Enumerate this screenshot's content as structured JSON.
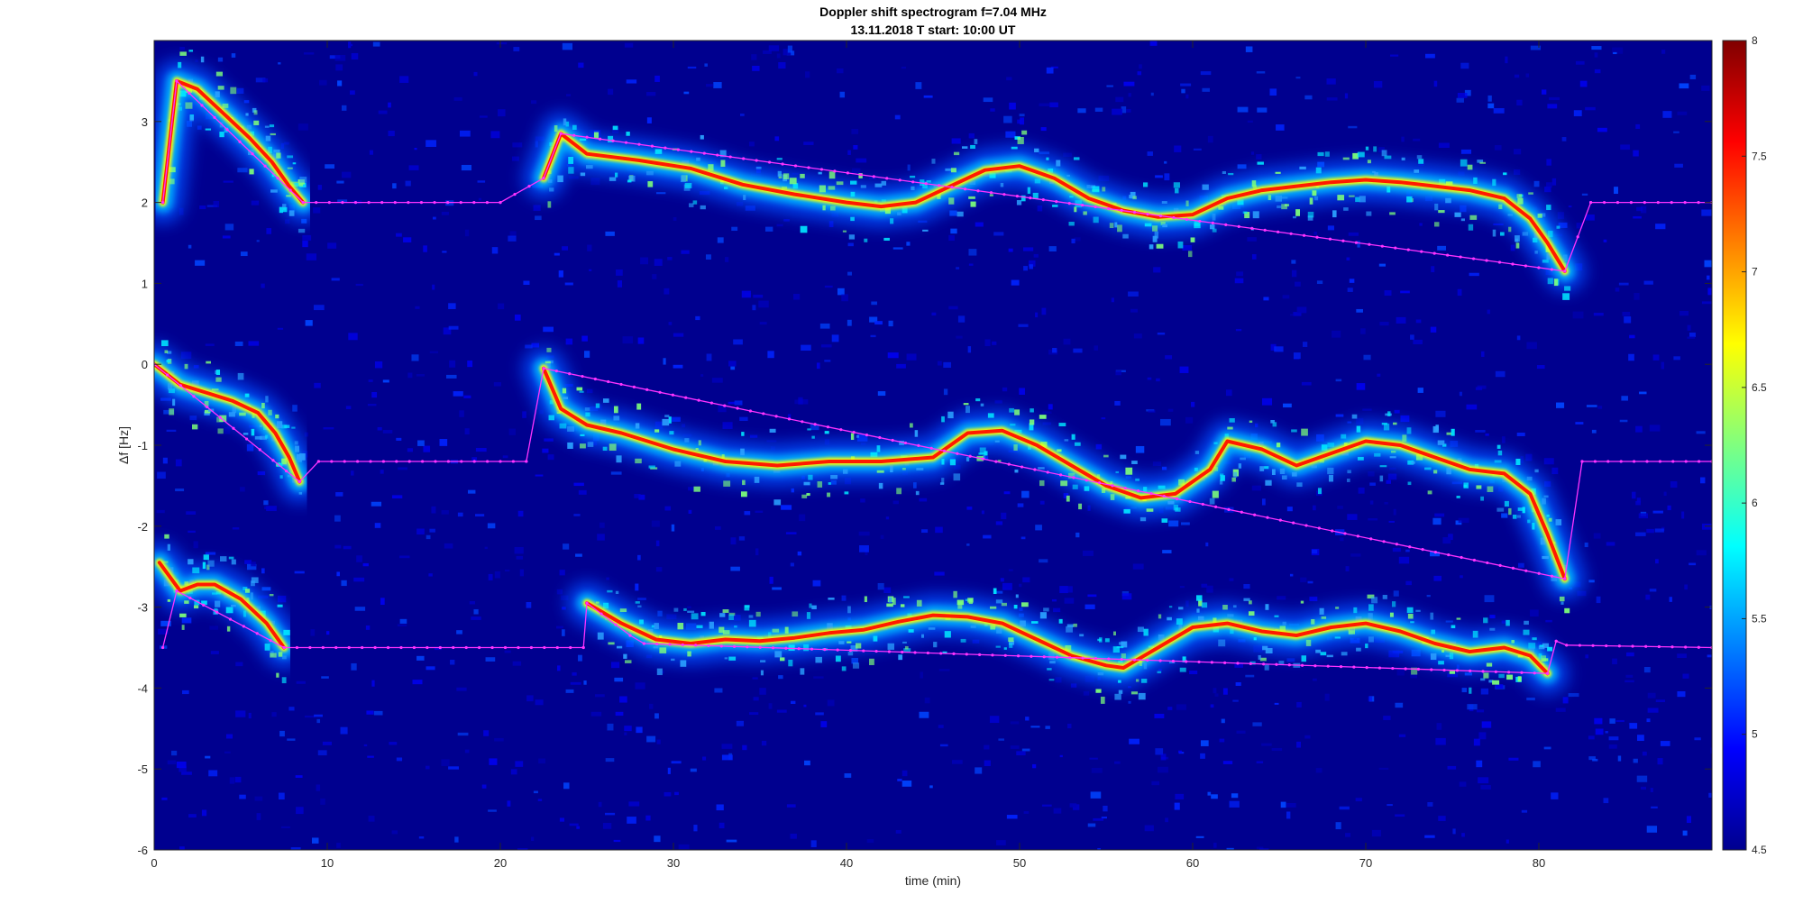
{
  "chart_data": {
    "type": "heatmap",
    "title": "Doppler shift spectrogram f=7.04 MHz",
    "subtitle": "13.11.2018   T start: 10:00 UT",
    "xlabel": "time (min)",
    "ylabel": "Δf [Hz]",
    "xlim": [
      0,
      90
    ],
    "ylim": [
      -6,
      4
    ],
    "xticks": [
      0,
      10,
      20,
      30,
      40,
      50,
      60,
      70,
      80
    ],
    "yticks": [
      -6,
      -5,
      -4,
      -3,
      -2,
      -1,
      0,
      1,
      2,
      3
    ],
    "colorbar": {
      "range": [
        4.5,
        8
      ],
      "ticks": [
        4.5,
        5,
        5.5,
        6,
        6.5,
        7,
        7.5,
        8
      ],
      "colormap": "jet"
    },
    "background_color": "#00008f",
    "series": [
      {
        "traces": [
          {
            "x": [
              0.5,
              1.3,
              2.5,
              4,
              5.5,
              6.8,
              7.8,
              8.6
            ],
            "y": [
              2.0,
              3.5,
              3.4,
              3.1,
              2.8,
              2.5,
              2.2,
              2.0
            ]
          },
          {
            "x": [
              22.5,
              23.5,
              25,
              28,
              31,
              34,
              37,
              40,
              42,
              44,
              46,
              48,
              50,
              52,
              54,
              56,
              58,
              60,
              62,
              64,
              66,
              68,
              70,
              72,
              74,
              76,
              78,
              79.5,
              80.5,
              81.5
            ],
            "y": [
              2.3,
              2.85,
              2.6,
              2.52,
              2.42,
              2.22,
              2.1,
              2.0,
              1.95,
              2.0,
              2.2,
              2.4,
              2.45,
              2.3,
              2.05,
              1.9,
              1.82,
              1.85,
              2.05,
              2.15,
              2.2,
              2.25,
              2.28,
              2.25,
              2.2,
              2.15,
              2.05,
              1.8,
              1.5,
              1.15
            ]
          }
        ],
        "marker_line": {
          "x": [
            0.5,
            1.3,
            8.6,
            20,
            22.5,
            23.5,
            81.5,
            83,
            90
          ],
          "y": [
            2.0,
            3.5,
            2.0,
            2.0,
            2.3,
            2.85,
            1.15,
            2.0,
            2.0
          ]
        }
      },
      {
        "traces": [
          {
            "x": [
              0,
              1.5,
              3,
              4.5,
              6,
              7,
              7.8,
              8.4
            ],
            "y": [
              0.0,
              -0.25,
              -0.35,
              -0.45,
              -0.6,
              -0.85,
              -1.15,
              -1.45
            ]
          },
          {
            "x": [
              22.5,
              23.5,
              25,
              27,
              30,
              33,
              36,
              39,
              42,
              45,
              47,
              49,
              51,
              53,
              55,
              57,
              59,
              61,
              62,
              64,
              66,
              68,
              70,
              72,
              74,
              76,
              78,
              79.5,
              80.5,
              81.5
            ],
            "y": [
              -0.05,
              -0.55,
              -0.75,
              -0.85,
              -1.05,
              -1.2,
              -1.25,
              -1.2,
              -1.2,
              -1.15,
              -0.85,
              -0.82,
              -1.0,
              -1.25,
              -1.5,
              -1.65,
              -1.6,
              -1.3,
              -0.95,
              -1.05,
              -1.25,
              -1.1,
              -0.95,
              -1.0,
              -1.15,
              -1.3,
              -1.35,
              -1.6,
              -2.1,
              -2.65
            ]
          }
        ],
        "marker_line": {
          "x": [
            0,
            8.4,
            9.5,
            21.5,
            22.5,
            81.5,
            82.5,
            90
          ],
          "y": [
            0.0,
            -1.45,
            -1.2,
            -1.2,
            -0.05,
            -2.65,
            -1.2,
            -1.2
          ]
        }
      },
      {
        "traces": [
          {
            "x": [
              0.3,
              1.5,
              2.5,
              3.5,
              5,
              6.5,
              7.5
            ],
            "y": [
              -2.45,
              -2.8,
              -2.72,
              -2.72,
              -2.9,
              -3.2,
              -3.5
            ]
          },
          {
            "x": [
              25,
              27,
              29,
              31,
              33,
              35,
              37,
              39,
              41,
              43,
              45,
              47,
              49,
              51,
              53,
              55,
              56,
              58,
              60,
              62,
              64,
              66,
              68,
              70,
              72,
              74,
              76,
              78,
              79.5,
              80.5
            ],
            "y": [
              -2.95,
              -3.2,
              -3.4,
              -3.45,
              -3.4,
              -3.42,
              -3.38,
              -3.32,
              -3.28,
              -3.18,
              -3.1,
              -3.12,
              -3.2,
              -3.4,
              -3.6,
              -3.72,
              -3.75,
              -3.5,
              -3.25,
              -3.2,
              -3.3,
              -3.35,
              -3.25,
              -3.2,
              -3.3,
              -3.45,
              -3.55,
              -3.5,
              -3.6,
              -3.82
            ]
          }
        ],
        "marker_line": {
          "x": [
            0.5,
            1.3,
            7.5,
            24.8,
            25,
            27.5,
            28.3,
            80.5,
            81,
            81.6,
            90
          ],
          "y": [
            -3.5,
            -2.8,
            -3.5,
            -3.5,
            -2.95,
            -3.35,
            -3.45,
            -3.82,
            -3.42,
            -3.47,
            -3.5
          ]
        }
      }
    ]
  }
}
